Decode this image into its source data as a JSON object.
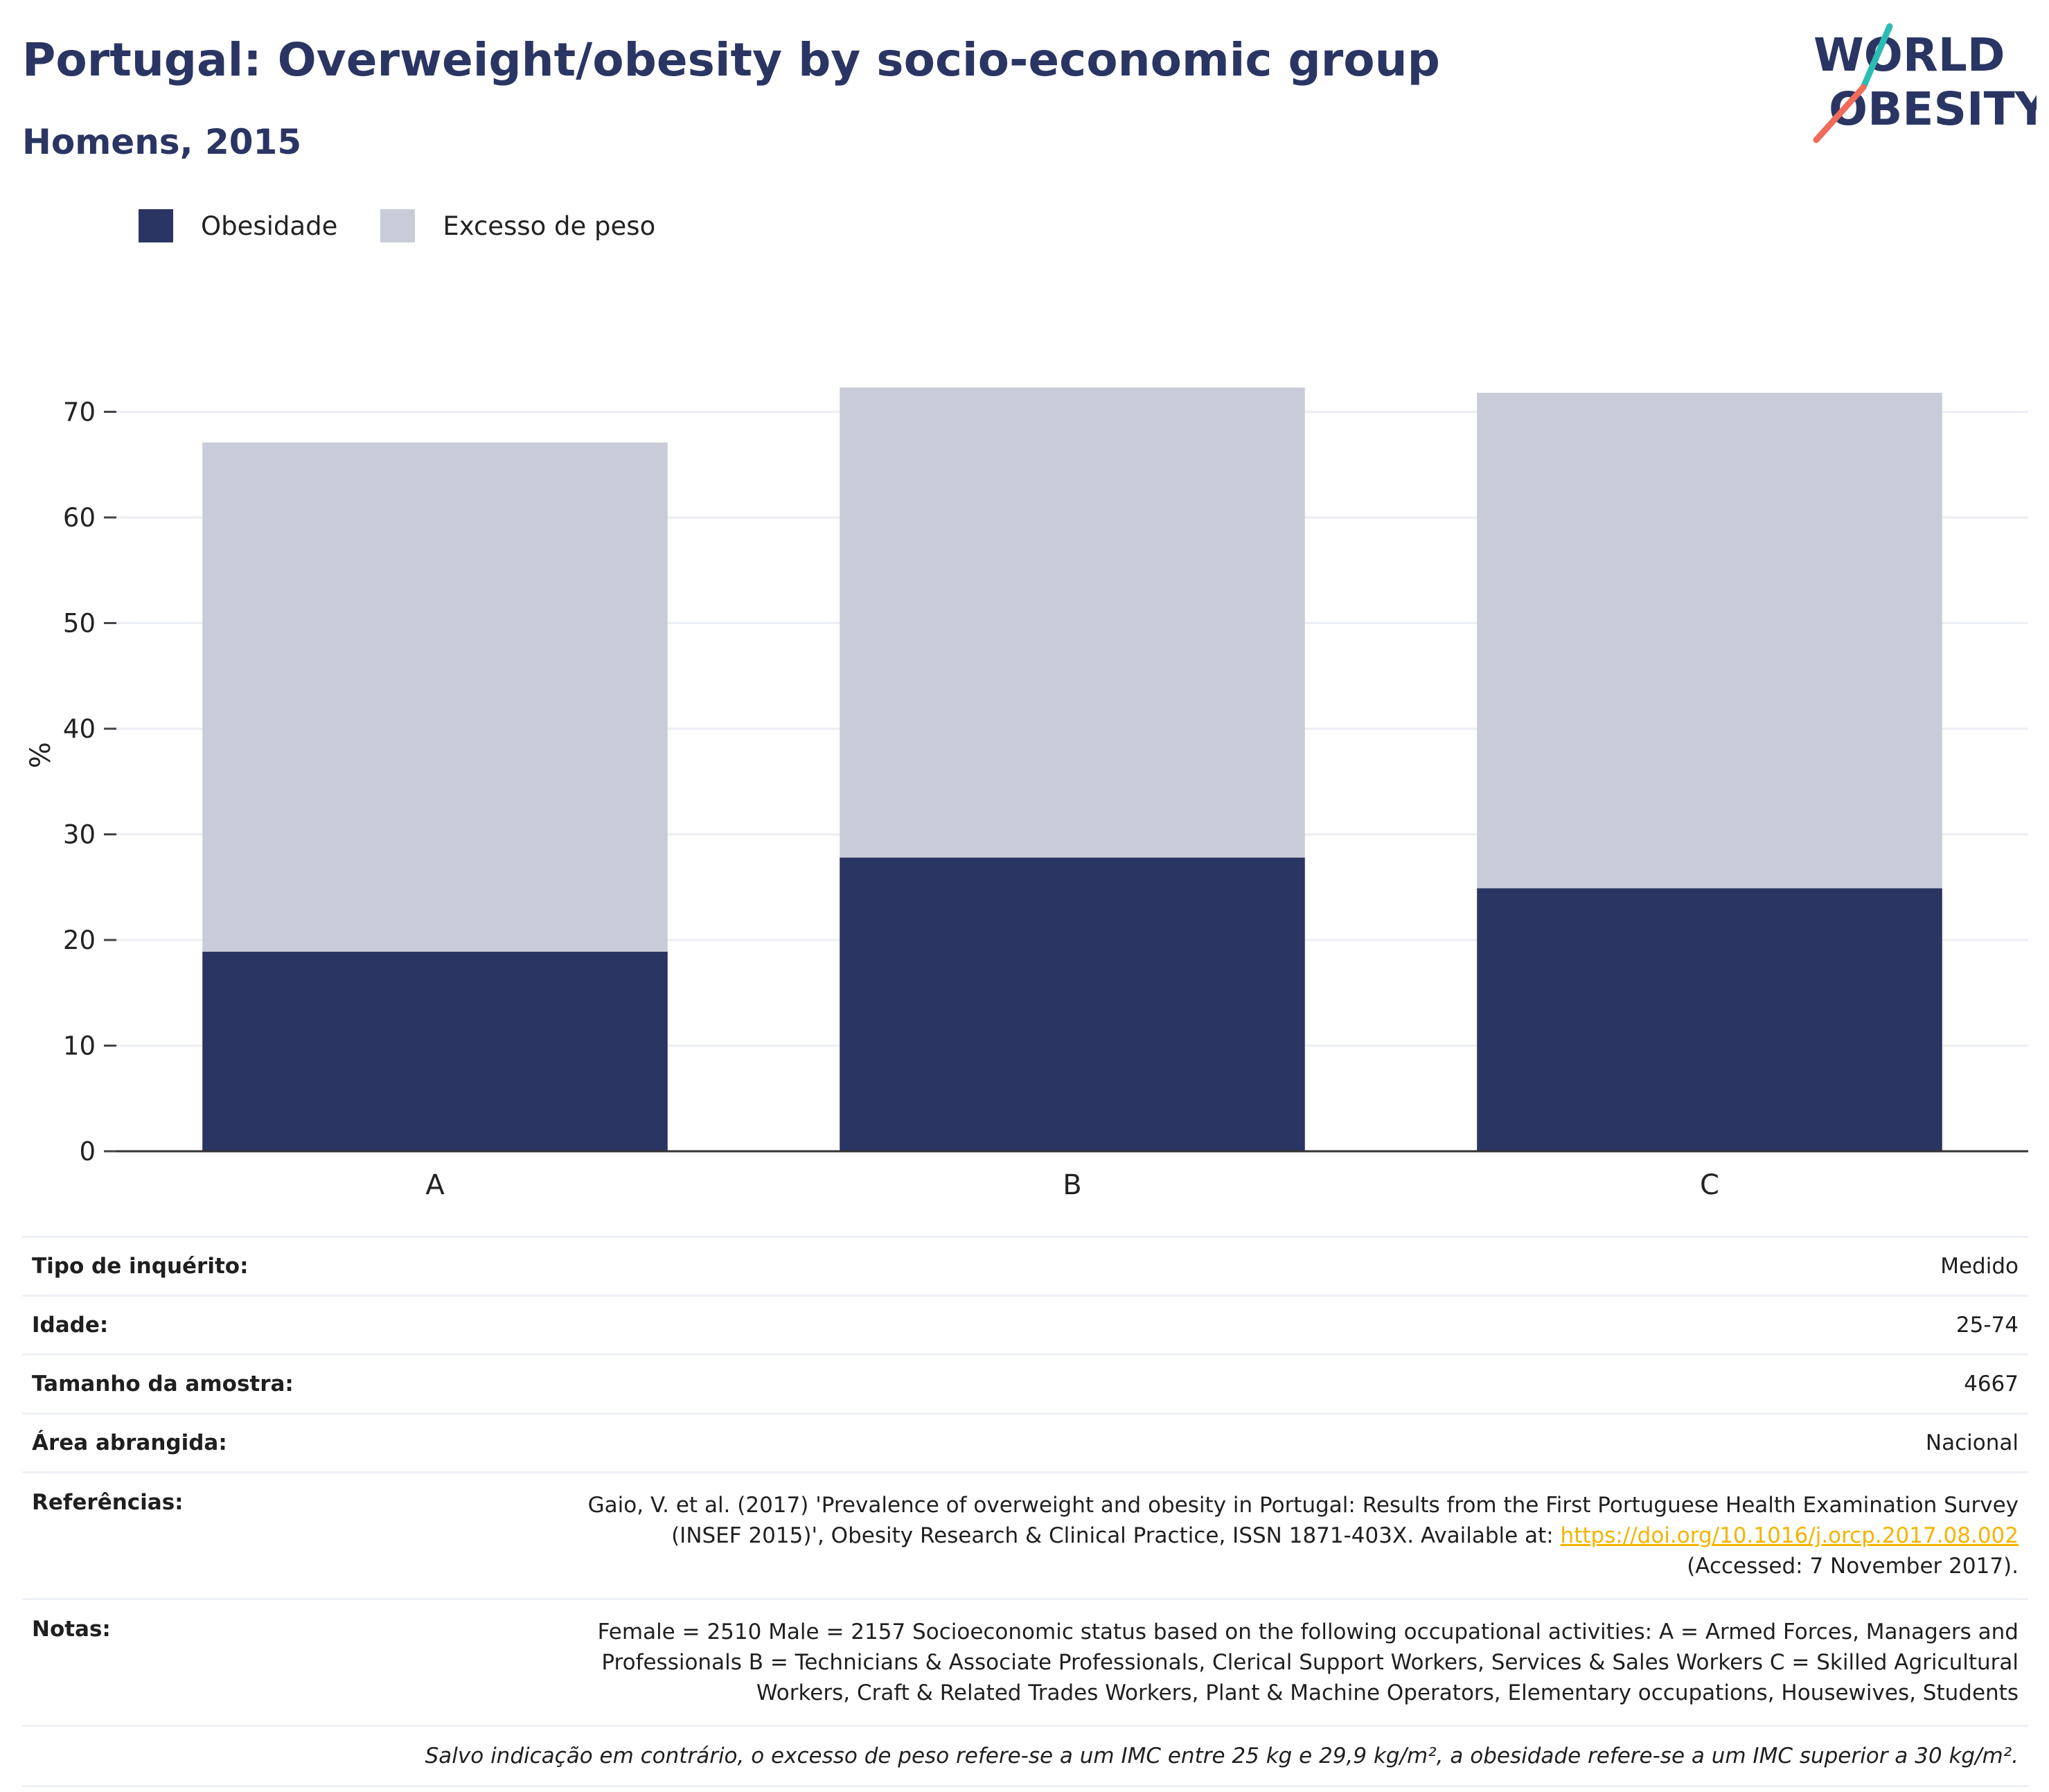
{
  "header": {
    "title": "Portugal: Overweight/obesity by socio-economic group",
    "subtitle": "Homens, 2015"
  },
  "logo": {
    "line1": "WORLD",
    "line2": "OBESITY",
    "accent_teal": "#2bbcb4",
    "accent_coral": "#ef6b5a",
    "text_color": "#2a3563"
  },
  "legend": [
    {
      "label": "Obesidade",
      "color": "#2a3563"
    },
    {
      "label": "Excesso de peso",
      "color": "#c9ccd8"
    }
  ],
  "chart_data": {
    "type": "bar",
    "stacked": true,
    "categories": [
      "A",
      "B",
      "C"
    ],
    "series": [
      {
        "name": "Obesidade",
        "values": [
          18.9,
          27.8,
          24.9
        ],
        "color": "#2a3563"
      },
      {
        "name": "Excesso de peso",
        "values": [
          48.2,
          44.5,
          46.9
        ],
        "color": "#c9ccd8"
      }
    ],
    "ylabel": "%",
    "ylim": [
      0,
      75
    ],
    "yticks": [
      0,
      10,
      20,
      30,
      40,
      50,
      60,
      70
    ],
    "grid": true
  },
  "info": {
    "survey_type": {
      "label": "Tipo de inquérito:",
      "value": "Medido"
    },
    "age": {
      "label": "Idade:",
      "value": "25-74"
    },
    "sample": {
      "label": "Tamanho da amostra:",
      "value": "4667"
    },
    "area": {
      "label": "Área abrangida:",
      "value": "Nacional"
    },
    "references": {
      "label": "Referências:",
      "text_before": "Gaio, V. et al. (2017) 'Prevalence of overweight and obesity in Portugal: Results from the First Portuguese Health Examination Survey (INSEF 2015)', Obesity Research & Clinical Practice, ISSN 1871-403X. Available at: ",
      "link": "https://doi.org/10.1016/j.orcp.2017.08.002",
      "text_after": " (Accessed: 7 November 2017)."
    },
    "notes": {
      "label": "Notas:",
      "value": "Female = 2510 Male = 2157 Socioeconomic status based on the following occupational activities: A = Armed Forces, Managers and Professionals B = Technicians & Associate Professionals, Clerical Support Workers, Services & Sales Workers C = Skilled Agricultural Workers, Craft & Related Trades Workers, Plant & Machine Operators, Elementary occupations, Housewives, Students"
    },
    "footnote": "Salvo indicação em contrário, o excesso de peso refere-se a um IMC entre 25 kg e 29,9 kg/m², a obesidade refere-se a um IMC superior a 30 kg/m²."
  }
}
